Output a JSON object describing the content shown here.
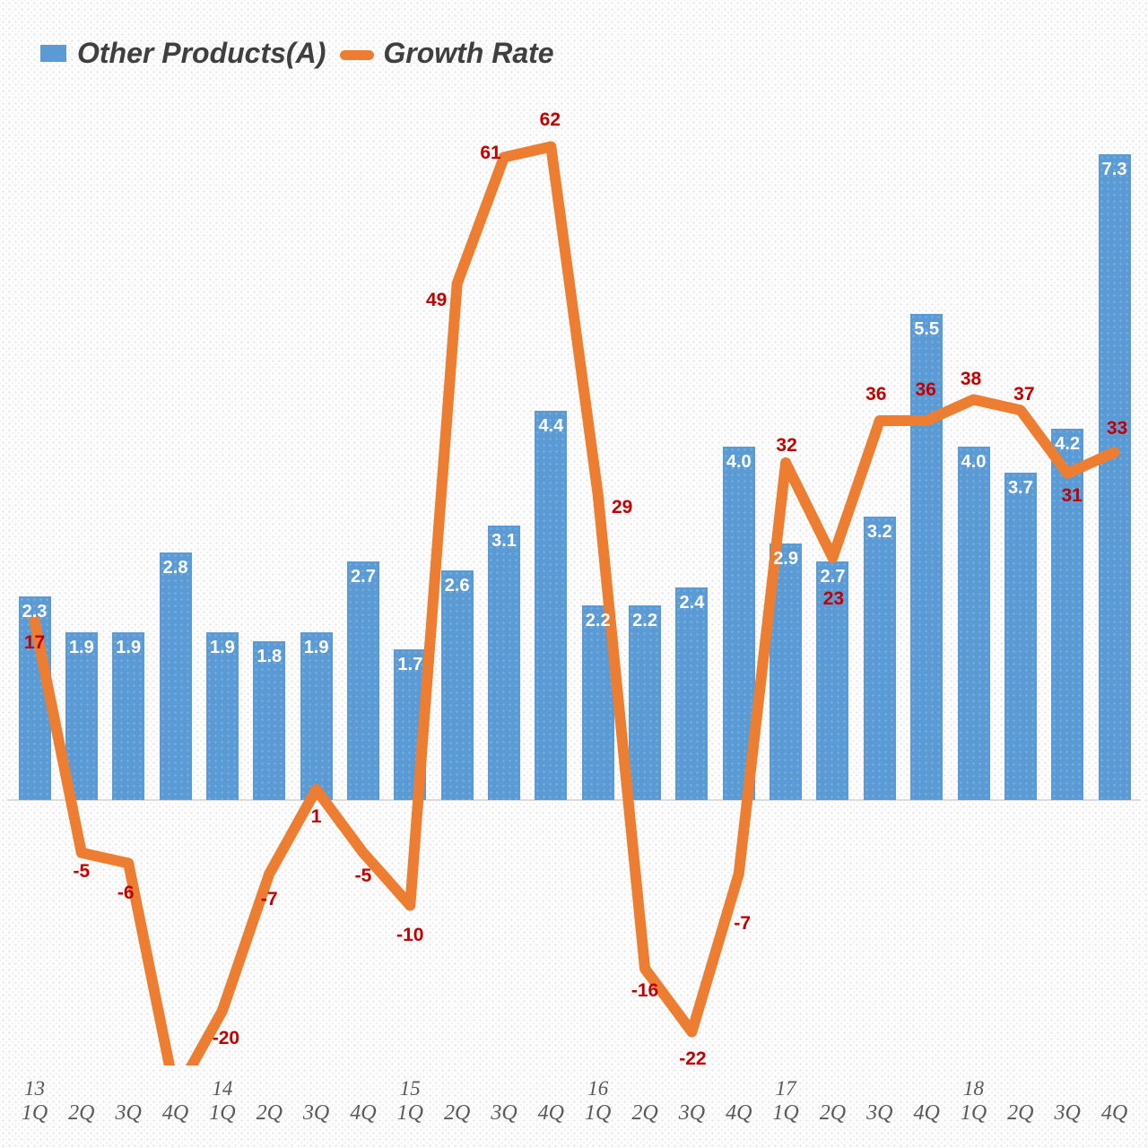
{
  "legend": {
    "items": [
      {
        "label": "Other Products(A)",
        "swatch": "bar-square"
      },
      {
        "label": "Growth Rate",
        "swatch": "line-dash"
      }
    ]
  },
  "colors": {
    "bar": "#5B9BD5",
    "line": "#ED7D31",
    "point_label": "#C00000",
    "bar_value_label": "#FFFFFF",
    "legend_text": "#3F3F3F",
    "axis_text": "#595959",
    "baseline": "#DCDCDC"
  },
  "chart_data": {
    "type": "bar+line",
    "title": "",
    "grid": false,
    "legend_position": "top-left",
    "x_axis": {
      "quarter_labels": [
        "1Q",
        "2Q",
        "3Q",
        "4Q",
        "1Q",
        "2Q",
        "3Q",
        "4Q",
        "1Q",
        "2Q",
        "3Q",
        "4Q",
        "1Q",
        "2Q",
        "3Q",
        "4Q",
        "1Q",
        "2Q",
        "3Q",
        "4Q",
        "1Q",
        "2Q",
        "3Q",
        "4Q"
      ],
      "year_marks": [
        {
          "label": "13",
          "index": 0
        },
        {
          "label": "14",
          "index": 4
        },
        {
          "label": "15",
          "index": 8
        },
        {
          "label": "16",
          "index": 12
        },
        {
          "label": "17",
          "index": 16
        },
        {
          "label": "18",
          "index": 20
        }
      ]
    },
    "series": [
      {
        "name": "Other Products(A)",
        "type": "bar",
        "color": "#5B9BD5",
        "values": [
          2.3,
          1.9,
          1.9,
          2.8,
          1.9,
          1.8,
          1.9,
          2.7,
          1.7,
          2.6,
          3.1,
          4.4,
          2.2,
          2.2,
          2.4,
          4.0,
          2.9,
          2.7,
          3.2,
          5.5,
          4.0,
          3.7,
          4.2,
          7.3
        ],
        "value_labels": [
          "2.3",
          "1.9",
          "1.9",
          "2.8",
          "1.9",
          "1.8",
          "1.9",
          "2.7",
          "1.7",
          "2.6",
          "3.1",
          "4.4",
          "2.2",
          "2.2",
          "2.4",
          "4.0",
          "2.9",
          "2.7",
          "3.2",
          "5.5",
          "4.0",
          "3.7",
          "4.2",
          "7.3"
        ]
      },
      {
        "name": "Growth Rate",
        "type": "line",
        "color": "#ED7D31",
        "values": [
          17,
          -5,
          -6,
          -28,
          -20,
          -7,
          1,
          -5,
          -10,
          49,
          61,
          62,
          29,
          -16,
          -22,
          -7,
          32,
          23,
          36,
          36,
          38,
          37,
          31,
          33
        ],
        "value_labels": [
          "17",
          "-5",
          "-6",
          null,
          "-20",
          "-7",
          "1",
          "-5",
          "-10",
          "49",
          "61",
          "62",
          "29",
          "-16",
          "-22",
          "-7",
          "32",
          "23",
          "36",
          "36",
          "38",
          "37",
          "31",
          "33"
        ],
        "estimated_indexes": [
          3
        ]
      }
    ],
    "bar_axis_range": [
      0,
      9
    ],
    "line_axis_visible_range": [
      -25,
      67
    ]
  }
}
